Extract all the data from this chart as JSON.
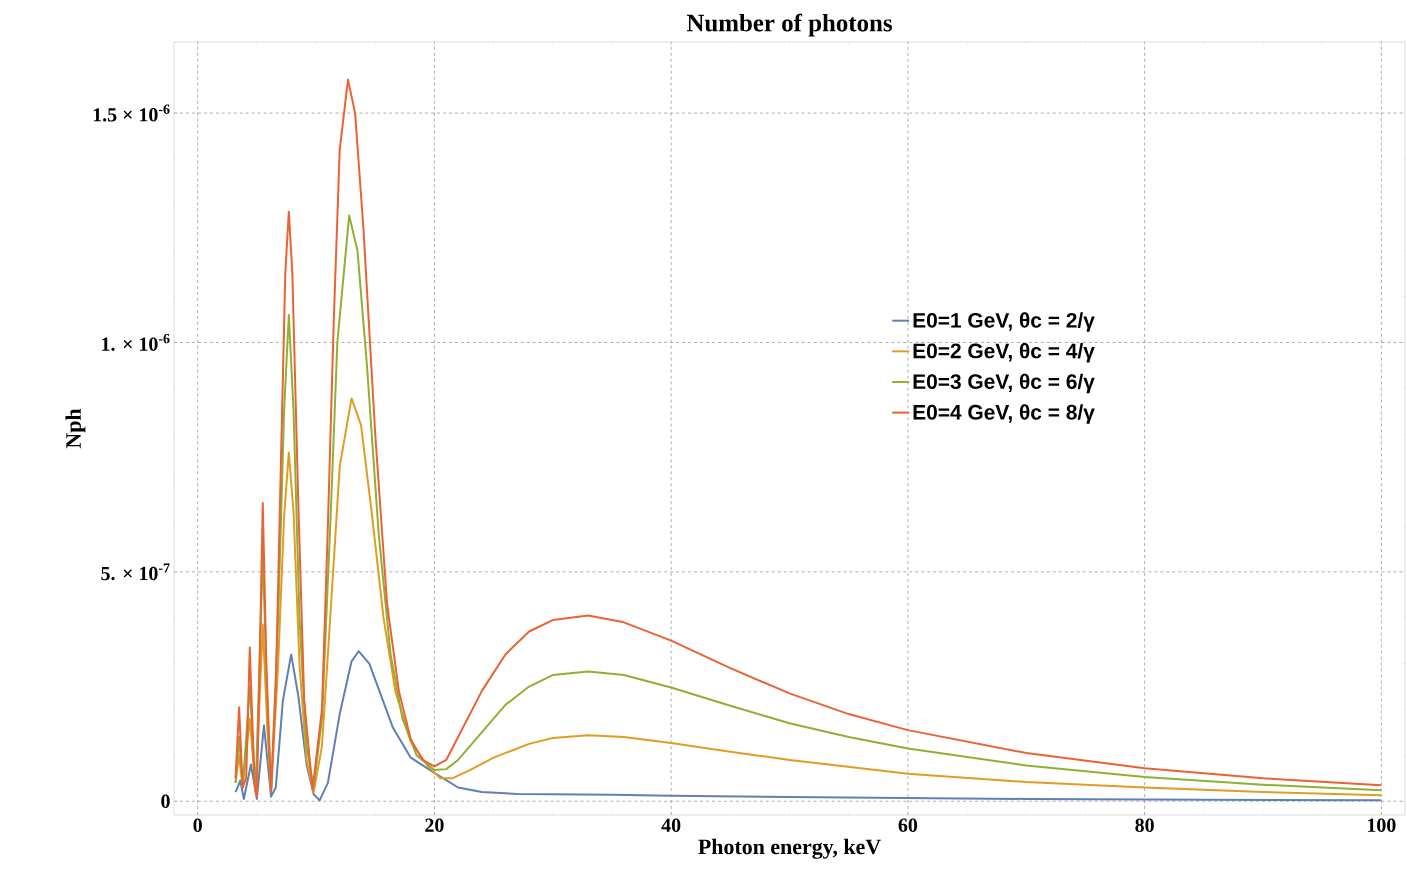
{
  "chart_data": {
    "type": "line",
    "title": "Number of photons",
    "xlabel": "Photon energy, keV",
    "ylabel": "Nph",
    "xlim": [
      -2,
      102
    ],
    "ylim": [
      -3e-08,
      1.655e-06
    ],
    "xticks": [
      0,
      20,
      40,
      60,
      80,
      100
    ],
    "yticks": [
      0,
      {
        "value": 5e-07,
        "label": "5. × 10$^{-7}$"
      },
      {
        "value": 1e-06,
        "label": "1. × 10$^{-6}$"
      },
      {
        "value": 1.5e-06,
        "label": "1.5 × 10$^{-6}$"
      }
    ],
    "grid": true,
    "legend": "right",
    "line_style": "solid",
    "series": [
      {
        "name": "E0=1 GeV, θc = 2/γ",
        "color": "#5e81b5",
        "x": [
          3.2,
          3.6,
          3.9,
          4.5,
          5.0,
          5.6,
          6.2,
          6.6,
          7.2,
          7.9,
          8.5,
          9.2,
          9.8,
          10.3,
          11,
          12,
          13,
          13.6,
          14.5,
          15.5,
          16.5,
          18,
          20,
          22,
          24,
          27,
          30,
          35,
          40,
          50,
          60,
          70,
          80,
          100
        ],
        "values": [
          2e-08,
          4.5e-08,
          5e-09,
          8e-08,
          5e-09,
          1.65e-07,
          1e-08,
          3e-08,
          2.2e-07,
          3.2e-07,
          2.3e-07,
          8e-08,
          1.5e-08,
          2e-09,
          4e-08,
          1.9e-07,
          3.05e-07,
          3.27e-07,
          3e-07,
          2.3e-07,
          1.6e-07,
          9.5e-08,
          6.2e-08,
          3e-08,
          2e-08,
          1.6e-08,
          1.5e-08,
          1.4e-08,
          1.2e-08,
          9e-09,
          7e-09,
          5e-09,
          4e-09,
          2e-09
        ]
      },
      {
        "name": "E0=2 GeV, θc = 4/γ",
        "color": "#e19c24",
        "x": [
          3.2,
          3.5,
          3.8,
          4.4,
          4.9,
          5.5,
          5.9,
          6.2,
          6.8,
          7.3,
          7.7,
          8.1,
          8.6,
          9.2,
          9.8,
          10.5,
          11.2,
          12,
          13,
          13.8,
          14.7,
          15.7,
          16.7,
          18,
          19.5,
          20.5,
          21.5,
          23,
          25,
          28,
          30,
          33,
          36,
          40,
          45,
          50,
          60,
          70,
          80,
          90,
          100
        ],
        "values": [
          4e-08,
          1e-07,
          3e-08,
          1.8e-07,
          2e-08,
          3.85e-07,
          1.5e-07,
          2e-08,
          3e-07,
          6.2e-07,
          7.6e-07,
          6.3e-07,
          3e-07,
          9e-08,
          2e-08,
          1.2e-07,
          4e-07,
          7.3e-07,
          8.78e-07,
          8.2e-07,
          6.3e-07,
          4e-07,
          2.4e-07,
          1.3e-07,
          7.5e-08,
          5e-08,
          5e-08,
          6.8e-08,
          9.5e-08,
          1.25e-07,
          1.38e-07,
          1.44e-07,
          1.4e-07,
          1.27e-07,
          1.08e-07,
          9e-08,
          6e-08,
          4.2e-08,
          3e-08,
          2e-08,
          1.3e-08
        ]
      },
      {
        "name": "E0=3 GeV, θc = 6/γ",
        "color": "#8fb032",
        "x": [
          3.2,
          3.5,
          3.8,
          4.4,
          4.9,
          5.5,
          5.9,
          6.2,
          6.8,
          7.3,
          7.7,
          8.1,
          8.6,
          9.2,
          9.8,
          10.5,
          11.2,
          11.8,
          12.8,
          13.5,
          14.3,
          15.3,
          16.3,
          17.3,
          18.5,
          20,
          21,
          22,
          24,
          26,
          28,
          30,
          33,
          36,
          40,
          45,
          50,
          55,
          60,
          70,
          80,
          90,
          100
        ],
        "values": [
          4e-08,
          1.4e-07,
          3e-08,
          2.5e-07,
          2e-08,
          5.4e-07,
          2e-07,
          2e-08,
          4e-07,
          8.5e-07,
          1.06e-06,
          8.5e-07,
          4e-07,
          1.2e-07,
          3e-08,
          1.8e-07,
          6e-07,
          1e-06,
          1.277e-06,
          1.2e-06,
          9.5e-07,
          5.8e-07,
          3.2e-07,
          1.8e-07,
          1e-07,
          6.8e-08,
          7e-08,
          9e-08,
          1.5e-07,
          2.1e-07,
          2.5e-07,
          2.75e-07,
          2.83e-07,
          2.75e-07,
          2.48e-07,
          2.08e-07,
          1.7e-07,
          1.4e-07,
          1.15e-07,
          7.8e-08,
          5.3e-08,
          3.6e-08,
          2.4e-08
        ]
      },
      {
        "name": "E0=4 GeV, θc = 8/γ",
        "color": "#eb6235",
        "x": [
          3.2,
          3.5,
          3.8,
          4.1,
          4.4,
          4.8,
          5.0,
          5.2,
          5.5,
          5.8,
          6.2,
          6.6,
          7.0,
          7.4,
          7.7,
          8.0,
          8.5,
          9.0,
          9.7,
          10.5,
          11.0,
          11.5,
          12.0,
          12.7,
          13.3,
          14.0,
          15.0,
          16.0,
          17.0,
          18.0,
          19.0,
          20.0,
          21.0,
          22,
          24,
          26,
          28,
          30,
          33,
          36,
          40,
          45,
          50,
          55,
          60,
          70,
          80,
          90,
          100
        ],
        "values": [
          5e-08,
          2.05e-07,
          3e-08,
          5e-08,
          3.35e-07,
          4e-08,
          1e-08,
          2.5e-07,
          6.5e-07,
          3e-07,
          2e-08,
          2.5e-07,
          7e-07,
          1.15e-06,
          1.285e-06,
          1.15e-06,
          6.5e-07,
          2.2e-07,
          2.5e-08,
          2e-07,
          6e-07,
          1.05e-06,
          1.42e-06,
          1.573e-06,
          1.5e-06,
          1.25e-06,
          8e-07,
          4.3e-07,
          2.4e-07,
          1.35e-07,
          9e-08,
          7.6e-08,
          9e-08,
          1.4e-07,
          2.4e-07,
          3.2e-07,
          3.7e-07,
          3.95e-07,
          4.05e-07,
          3.9e-07,
          3.5e-07,
          2.9e-07,
          2.35e-07,
          1.9e-07,
          1.55e-07,
          1.05e-07,
          7.2e-08,
          5e-08,
          3.5e-08
        ]
      }
    ]
  }
}
